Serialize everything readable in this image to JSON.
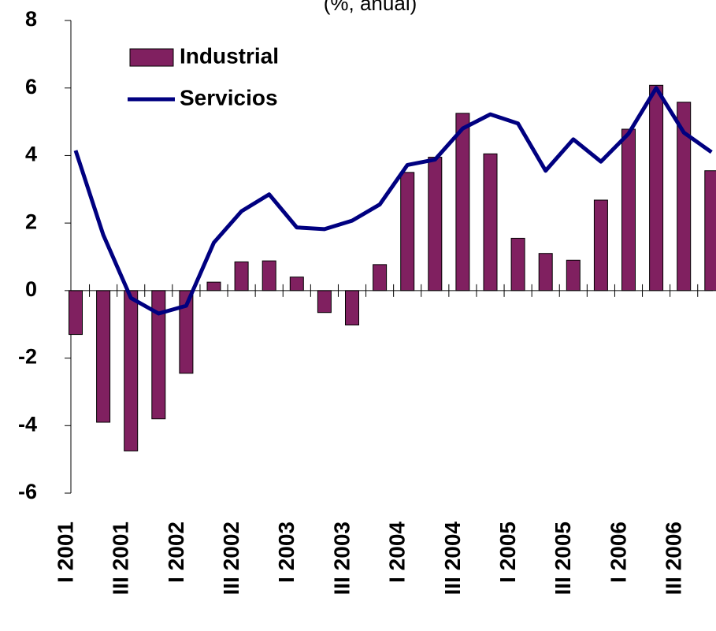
{
  "chart_data": {
    "type": "bar_line",
    "title": "(%, anual)",
    "categories": [
      "I 2001",
      null,
      "III 2001",
      null,
      "I 2002",
      null,
      "III 2002",
      null,
      "I 2003",
      null,
      "III 2003",
      null,
      "I 2004",
      null,
      "III 2004",
      null,
      "I 2005",
      null,
      "III 2005",
      null,
      "I 2006",
      null,
      "III 2006",
      null
    ],
    "series": [
      {
        "name": "Industrial",
        "type": "bar",
        "color": "#802060",
        "values": [
          -1.3,
          -3.9,
          -4.75,
          -3.8,
          -2.45,
          0.25,
          0.85,
          0.88,
          0.4,
          -0.65,
          -1.02,
          0.77,
          3.5,
          3.95,
          5.25,
          4.05,
          1.55,
          1.1,
          0.9,
          2.68,
          4.78,
          6.08,
          5.58,
          3.55
        ]
      },
      {
        "name": "Servicios",
        "type": "line",
        "color": "#000080",
        "values": [
          4.15,
          1.65,
          -0.22,
          -0.68,
          -0.45,
          1.42,
          2.35,
          2.85,
          1.87,
          1.82,
          2.07,
          2.55,
          3.72,
          3.88,
          4.8,
          5.22,
          4.95,
          3.55,
          4.48,
          3.82,
          4.65,
          6.0,
          4.68,
          4.1
        ]
      }
    ],
    "ylim": [
      -6,
      8
    ],
    "yticks": [
      -6,
      -4,
      -2,
      0,
      2,
      4,
      6,
      8
    ],
    "grid": false,
    "legend": "upper left"
  }
}
